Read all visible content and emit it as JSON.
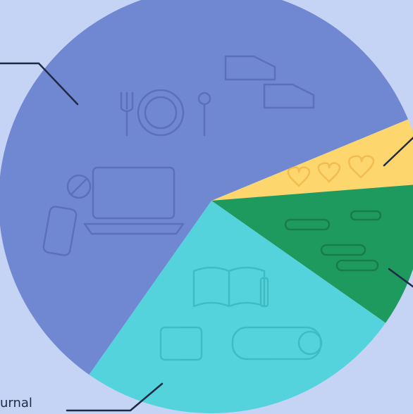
{
  "chart_data": {
    "type": "pie",
    "categories": [
      null,
      null,
      "urnal",
      null
    ],
    "values": [
      5,
      11,
      25,
      59
    ],
    "colors": [
      "#fdd66d",
      "#1f9a5e",
      "#55d3dc",
      "#7088d2"
    ]
  }
}
